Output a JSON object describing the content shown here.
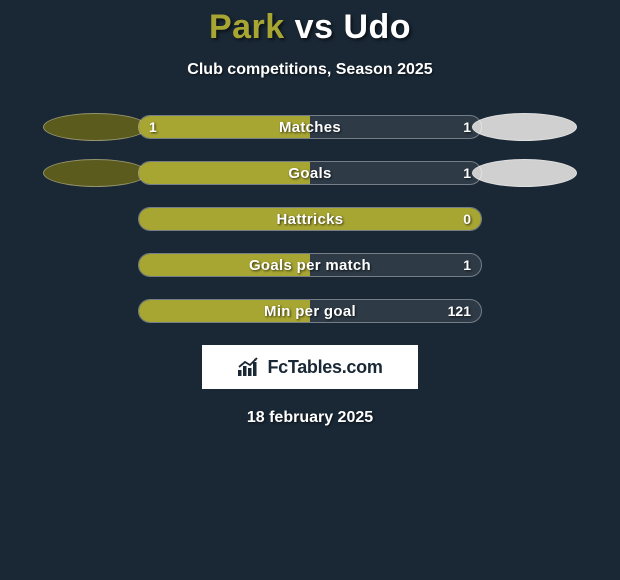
{
  "title": {
    "player1": "Park",
    "vs": "vs",
    "player2": "Udo"
  },
  "subtitle": "Club competitions, Season 2025",
  "colors": {
    "background": "#1a2836",
    "player1_bar": "#a8a632",
    "player1_ellipse": "#5c5b1e",
    "player2_ellipse": "#d0d0d0",
    "text": "#ffffff"
  },
  "stats": [
    {
      "label": "Matches",
      "left_val": "1",
      "right_val": "1",
      "left_pct": 50,
      "show_ellipses": true
    },
    {
      "label": "Goals",
      "left_val": "",
      "right_val": "1",
      "left_pct": 50,
      "show_ellipses": true
    },
    {
      "label": "Hattricks",
      "left_val": "",
      "right_val": "0",
      "left_pct": 100,
      "show_ellipses": false
    },
    {
      "label": "Goals per match",
      "left_val": "",
      "right_val": "1",
      "left_pct": 50,
      "show_ellipses": false
    },
    {
      "label": "Min per goal",
      "left_val": "",
      "right_val": "121",
      "left_pct": 50,
      "show_ellipses": false
    }
  ],
  "brand": "FcTables.com",
  "date": "18 february 2025"
}
